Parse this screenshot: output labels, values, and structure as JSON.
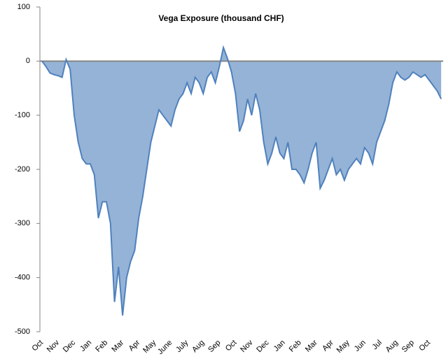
{
  "chart_data": {
    "type": "area",
    "title": "Vega Exposure (thousand CHF)",
    "categories": [
      "Oct",
      null,
      null,
      null,
      "Nov",
      null,
      null,
      null,
      "Dec",
      null,
      null,
      null,
      "Jan",
      null,
      null,
      null,
      "Feb",
      null,
      null,
      null,
      "Mar",
      null,
      null,
      null,
      "Apr",
      null,
      null,
      null,
      "May",
      null,
      null,
      null,
      "June",
      null,
      null,
      null,
      "July",
      null,
      null,
      null,
      "Aug",
      null,
      null,
      null,
      "Sep",
      null,
      null,
      null,
      "Oct",
      null,
      null,
      null,
      "Nov",
      null,
      null,
      null,
      "Dec",
      null,
      null,
      null,
      "Jan",
      null,
      null,
      null,
      "Feb",
      null,
      null,
      null,
      "Mar",
      null,
      null,
      null,
      "Apr",
      null,
      null,
      null,
      "May",
      null,
      null,
      null,
      "Jun",
      null,
      null,
      null,
      "Jul",
      null,
      null,
      null,
      "Aug",
      null,
      null,
      null,
      "Sep",
      null,
      null,
      null,
      "Oct",
      null,
      null,
      null
    ],
    "values": [
      0,
      -10,
      -22,
      -25,
      -27,
      -30,
      3,
      -15,
      -100,
      -150,
      -180,
      -190,
      -190,
      -210,
      -290,
      -260,
      -260,
      -300,
      -445,
      -380,
      -470,
      -400,
      -370,
      -350,
      -290,
      -250,
      -200,
      -150,
      -120,
      -90,
      -100,
      -110,
      -120,
      -90,
      -70,
      -60,
      -40,
      -60,
      -30,
      -40,
      -60,
      -30,
      -20,
      -40,
      -10,
      25,
      5,
      -20,
      -60,
      -130,
      -110,
      -70,
      -100,
      -60,
      -90,
      -150,
      -190,
      -170,
      -140,
      -170,
      -180,
      -150,
      -200,
      -200,
      -210,
      -225,
      -200,
      -170,
      -150,
      -235,
      -220,
      -200,
      -180,
      -210,
      -200,
      -220,
      -200,
      -190,
      -180,
      -190,
      -160,
      -170,
      -190,
      -150,
      -130,
      -110,
      -80,
      -40,
      -20,
      -30,
      -35,
      -30,
      -20,
      -25,
      -30,
      -25,
      -35,
      -45,
      -55,
      -70
    ],
    "fill_color": "#95b3d7",
    "line_color": "#4f81bd",
    "ylim": [
      -500,
      100
    ],
    "yticks": [
      -500,
      -400,
      -300,
      -200,
      -100,
      0,
      100
    ]
  }
}
